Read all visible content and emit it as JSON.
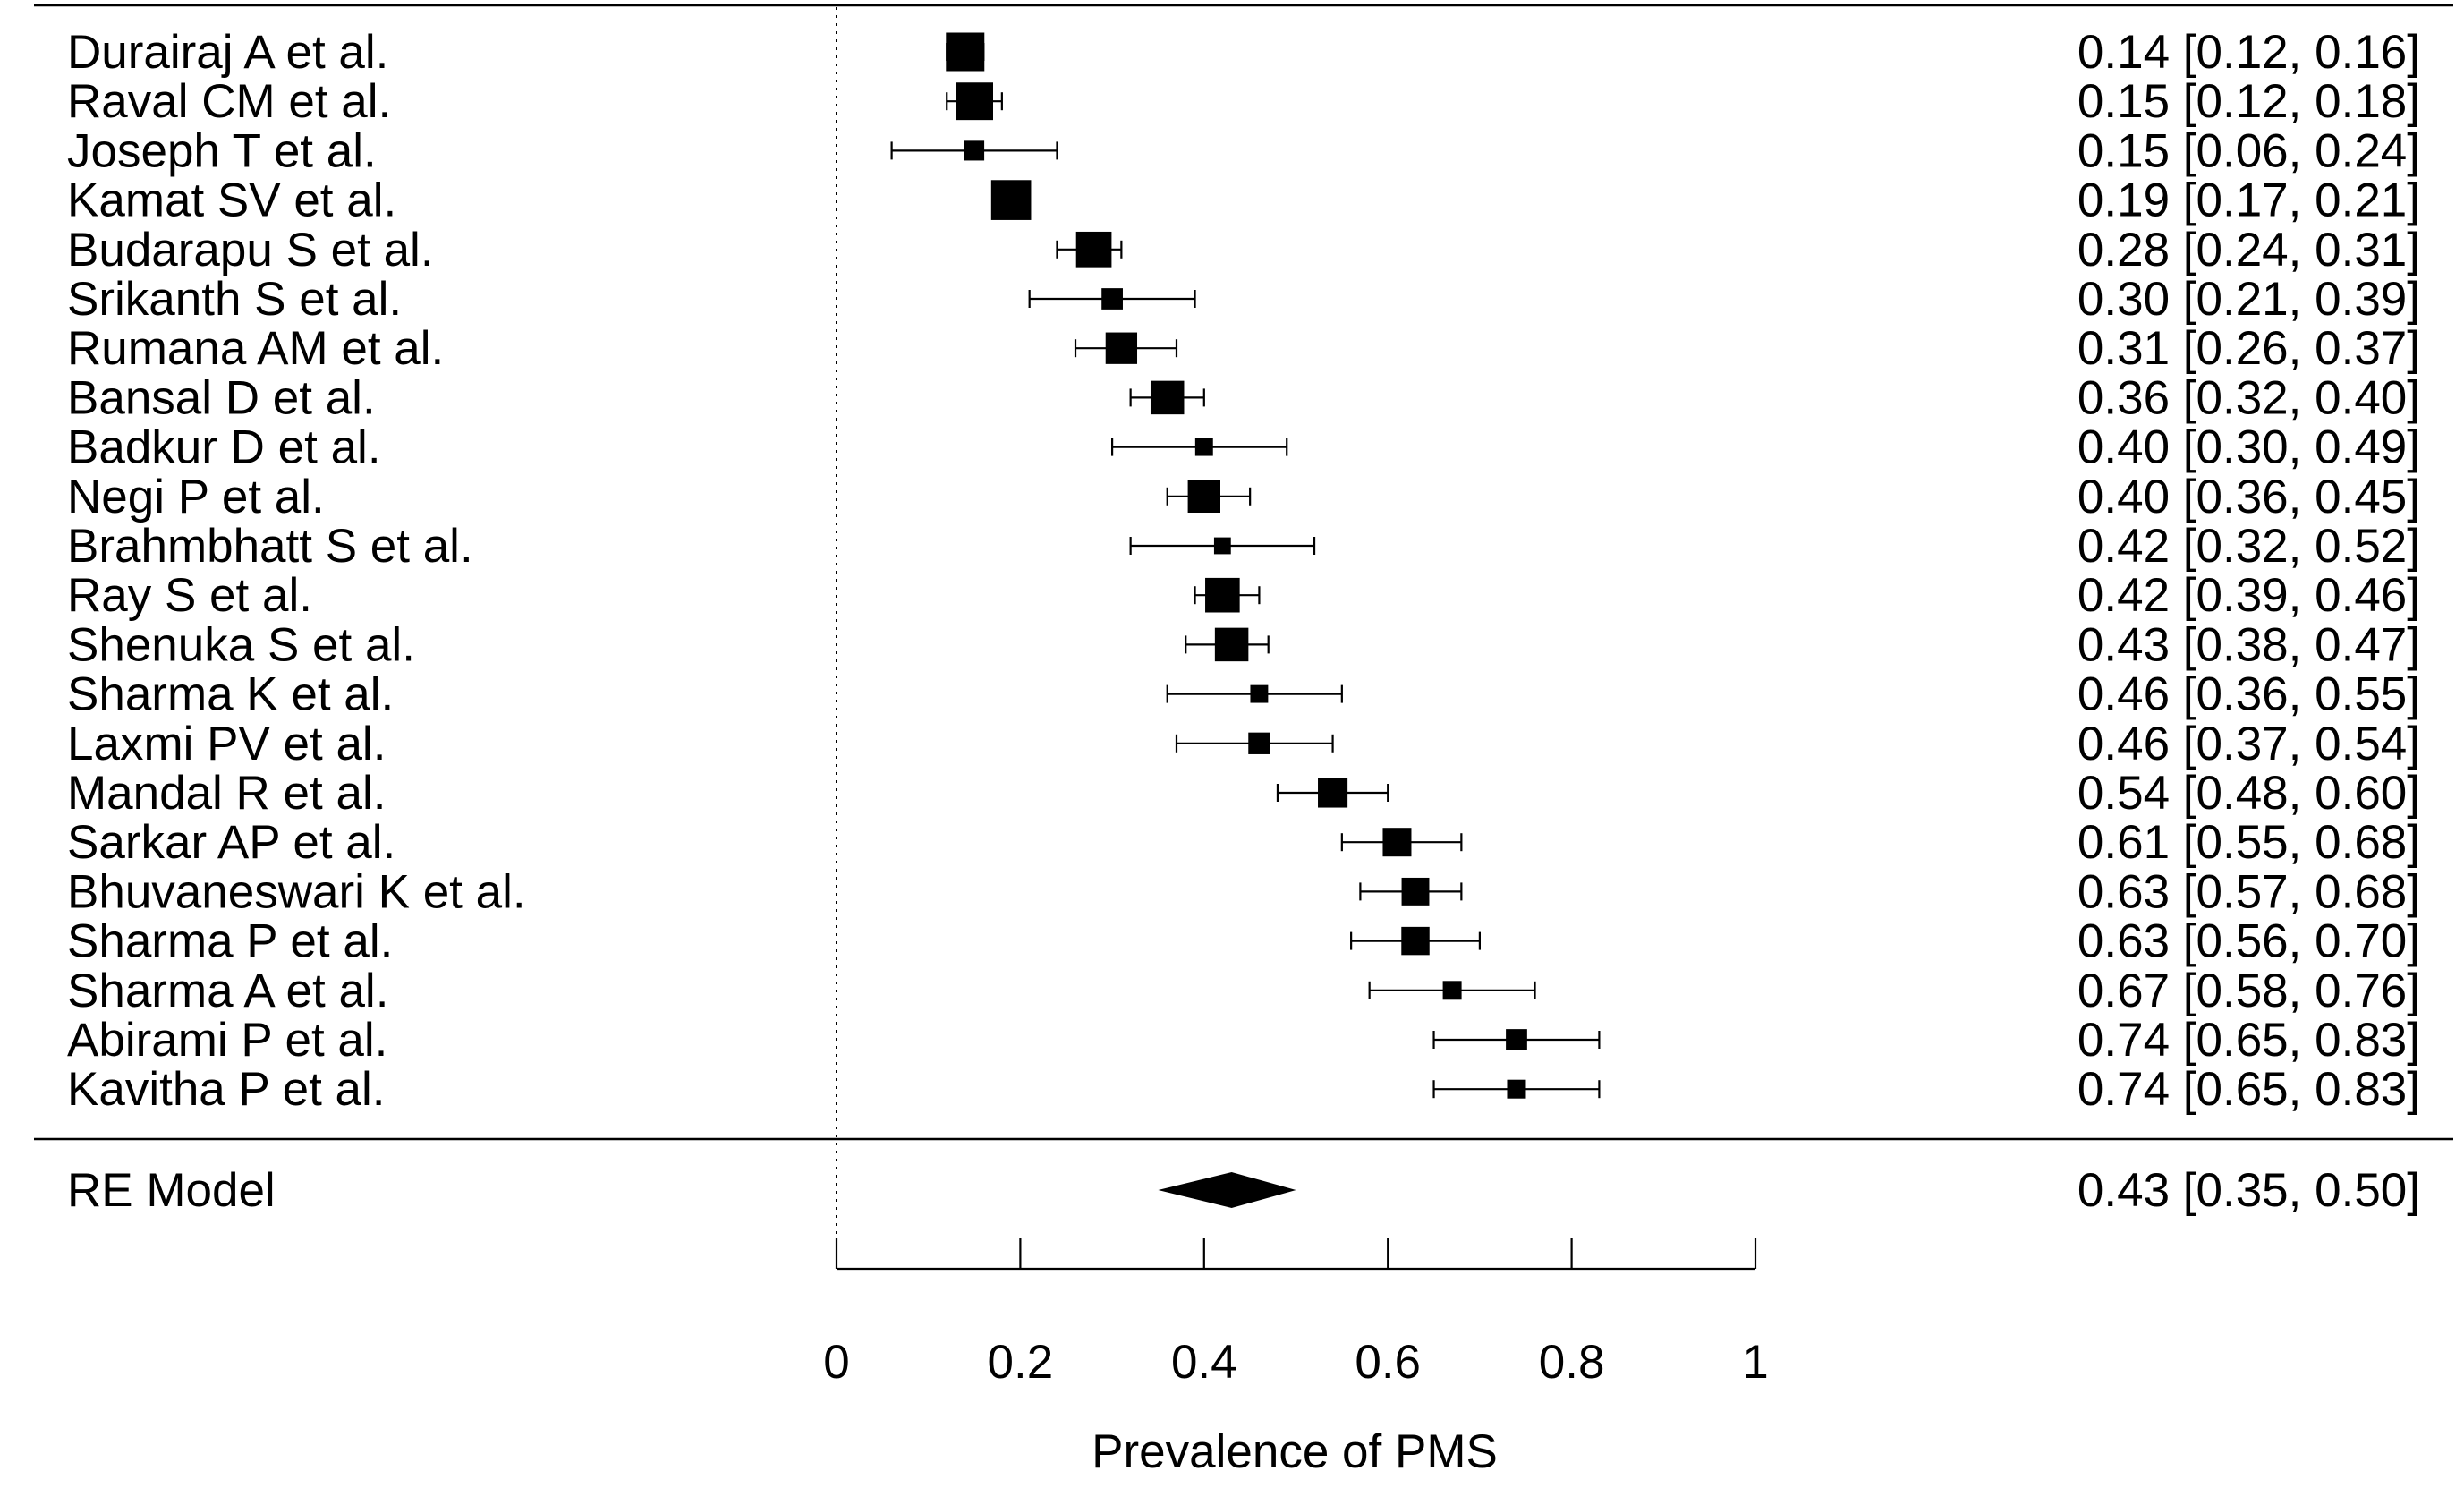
{
  "chart_data": {
    "type": "forest",
    "xlabel": "Prevalence of PMS",
    "xlim": [
      0,
      1
    ],
    "ticks": [
      0,
      0.2,
      0.4,
      0.6,
      0.8,
      1
    ],
    "tick_labels": [
      "0",
      "0.2",
      "0.4",
      "0.6",
      "0.8",
      "1"
    ],
    "reference_line": 0,
    "studies": [
      {
        "label": "Durairaj A et al.",
        "est": 0.14,
        "lo": 0.12,
        "hi": 0.16,
        "ci_text": "0.14 [0.12, 0.16]",
        "weight": 6.0
      },
      {
        "label": "Raval CM et al.",
        "est": 0.15,
        "lo": 0.12,
        "hi": 0.18,
        "ci_text": "0.15 [0.12, 0.18]",
        "weight": 5.8
      },
      {
        "label": "Joseph T et al.",
        "est": 0.15,
        "lo": 0.06,
        "hi": 0.24,
        "ci_text": "0.15 [0.06, 0.24]",
        "weight": 2.2
      },
      {
        "label": "Kamat SV et al.",
        "est": 0.19,
        "lo": 0.17,
        "hi": 0.21,
        "ci_text": "0.19 [0.17, 0.21]",
        "weight": 6.3
      },
      {
        "label": "Budarapu S et al.",
        "est": 0.28,
        "lo": 0.24,
        "hi": 0.31,
        "ci_text": "0.28 [0.24, 0.31]",
        "weight": 5.4
      },
      {
        "label": "Srikanth S et al.",
        "est": 0.3,
        "lo": 0.21,
        "hi": 0.39,
        "ci_text": "0.30 [0.21, 0.39]",
        "weight": 2.5
      },
      {
        "label": "Rumana AM et al.",
        "est": 0.31,
        "lo": 0.26,
        "hi": 0.37,
        "ci_text": "0.31 [0.26, 0.37]",
        "weight": 4.6
      },
      {
        "label": "Bansal D et al.",
        "est": 0.36,
        "lo": 0.32,
        "hi": 0.4,
        "ci_text": "0.36 [0.32, 0.40]",
        "weight": 5.0
      },
      {
        "label": "Badkur D et al.",
        "est": 0.4,
        "lo": 0.3,
        "hi": 0.49,
        "ci_text": "0.40 [0.30, 0.49]",
        "weight": 1.8
      },
      {
        "label": "Negi P et al.",
        "est": 0.4,
        "lo": 0.36,
        "hi": 0.45,
        "ci_text": "0.40 [0.36, 0.45]",
        "weight": 4.8
      },
      {
        "label": "Brahmbhatt S et al.",
        "est": 0.42,
        "lo": 0.32,
        "hi": 0.52,
        "ci_text": "0.42 [0.32, 0.52]",
        "weight": 1.6
      },
      {
        "label": "Ray S et al.",
        "est": 0.42,
        "lo": 0.39,
        "hi": 0.46,
        "ci_text": "0.42 [0.39, 0.46]",
        "weight": 5.2
      },
      {
        "label": "Shenuka S et al.",
        "est": 0.43,
        "lo": 0.38,
        "hi": 0.47,
        "ci_text": "0.43 [0.38, 0.47]",
        "weight": 5.0
      },
      {
        "label": "Sharma K et al.",
        "est": 0.46,
        "lo": 0.36,
        "hi": 0.55,
        "ci_text": "0.46 [0.36, 0.55]",
        "weight": 1.8
      },
      {
        "label": "Laxmi PV et al.",
        "est": 0.46,
        "lo": 0.37,
        "hi": 0.54,
        "ci_text": "0.46 [0.37, 0.54]",
        "weight": 2.6
      },
      {
        "label": "Mandal R et al.",
        "est": 0.54,
        "lo": 0.48,
        "hi": 0.6,
        "ci_text": "0.54 [0.48, 0.60]",
        "weight": 4.2
      },
      {
        "label": "Sarkar AP et al.",
        "est": 0.61,
        "lo": 0.55,
        "hi": 0.68,
        "ci_text": "0.61 [0.55, 0.68]",
        "weight": 4.0
      },
      {
        "label": "Bhuvaneswari K et al.",
        "est": 0.63,
        "lo": 0.57,
        "hi": 0.68,
        "ci_text": "0.63 [0.57, 0.68]",
        "weight": 3.8
      },
      {
        "label": "Sharma P et al.",
        "est": 0.63,
        "lo": 0.56,
        "hi": 0.7,
        "ci_text": "0.63 [0.56, 0.70]",
        "weight": 3.9
      },
      {
        "label": "Sharma A et al.",
        "est": 0.67,
        "lo": 0.58,
        "hi": 0.76,
        "ci_text": "0.67 [0.58, 0.76]",
        "weight": 2.0
      },
      {
        "label": "Abirami P et al.",
        "est": 0.74,
        "lo": 0.65,
        "hi": 0.83,
        "ci_text": "0.74 [0.65, 0.83]",
        "weight": 2.5
      },
      {
        "label": "Kavitha P et al.",
        "est": 0.74,
        "lo": 0.65,
        "hi": 0.83,
        "ci_text": "0.74 [0.65, 0.83]",
        "weight": 2.0
      }
    ],
    "summary": {
      "label": "RE Model",
      "est": 0.43,
      "lo": 0.35,
      "hi": 0.5,
      "ci_text": "0.43 [0.35, 0.50]"
    }
  }
}
